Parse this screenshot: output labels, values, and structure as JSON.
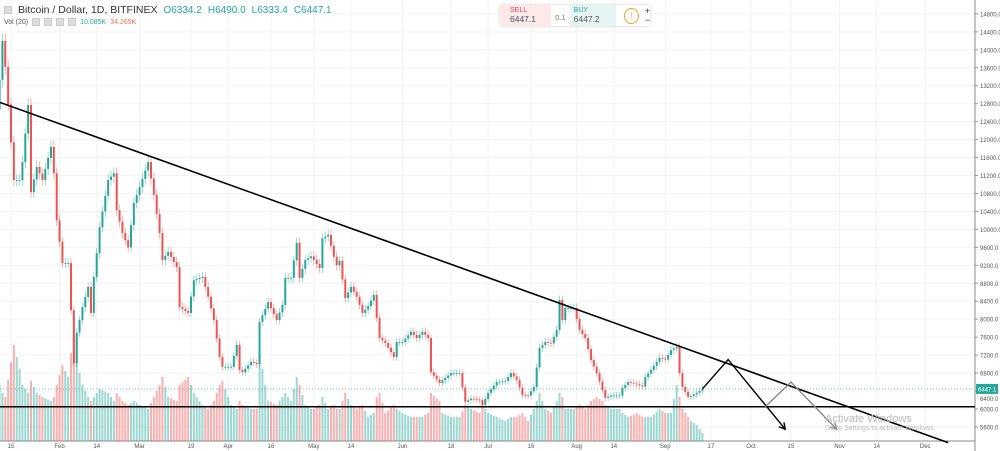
{
  "header": {
    "symbol_title": "Bitcoin / Dollar, 1D, BITFINEX",
    "open": "O6334.2",
    "high": "H6490.0",
    "low": "L6333.4",
    "close": "C6447.1",
    "volume_label": "Vol (20)",
    "volume_value": "10.085K",
    "volume_ma": "34.265K"
  },
  "trade_panel": {
    "sell_label": "SELL",
    "sell_price": "6447.1",
    "quantity": "0.1",
    "buy_label": "BUY",
    "buy_price": "6447.2",
    "plus": "+",
    "minus": "−",
    "info_icon": "info-icon"
  },
  "watermark": {
    "line1": "Activate Windows",
    "line2": "Go to Settings to activate Windows."
  },
  "colors": {
    "up": "#26a69a",
    "down": "#ef5350",
    "drawing": "#000000",
    "drawing_secondary": "#888888",
    "last_price": "#26a69a"
  },
  "chart_data": {
    "type": "candlestick",
    "interval": "1D",
    "last_price": 6447.1,
    "last_price_label": "6447.1",
    "price_ticks": [
      "5600.0",
      "6000.0",
      "6400.0",
      "6800.0",
      "7200.0",
      "7600.0",
      "8000.0",
      "8400.0",
      "8800.0",
      "9200.0",
      "9600.0",
      "10000.0",
      "10400.0",
      "10800.0",
      "11200.0",
      "11600.0",
      "12000.0",
      "12400.0",
      "12800.0",
      "13200.0",
      "13600.0",
      "14000.0",
      "14400.0",
      "14800.0"
    ],
    "time_ticks": [
      {
        "label": "15",
        "date": "2018-01-15"
      },
      {
        "label": "Feb",
        "date": "2018-02-01"
      },
      {
        "label": "14",
        "date": "2018-02-14"
      },
      {
        "label": "Mar",
        "date": "2018-03-01"
      },
      {
        "label": "19",
        "date": "2018-03-19"
      },
      {
        "label": "Apr",
        "date": "2018-04-01"
      },
      {
        "label": "16",
        "date": "2018-04-16"
      },
      {
        "label": "May",
        "date": "2018-05-01"
      },
      {
        "label": "14",
        "date": "2018-05-14"
      },
      {
        "label": "Jun",
        "date": "2018-06-01"
      },
      {
        "label": "18",
        "date": "2018-06-18"
      },
      {
        "label": "Jul",
        "date": "2018-07-01"
      },
      {
        "label": "16",
        "date": "2018-07-16"
      },
      {
        "label": "Aug",
        "date": "2018-08-01"
      },
      {
        "label": "14",
        "date": "2018-08-14"
      },
      {
        "label": "Sep",
        "date": "2018-09-01"
      },
      {
        "label": "17",
        "date": "2018-09-17"
      },
      {
        "label": "Oct",
        "date": "2018-10-01"
      },
      {
        "label": "15",
        "date": "2018-10-15"
      },
      {
        "label": "Nov",
        "date": "2018-11-01"
      },
      {
        "label": "14",
        "date": "2018-11-14"
      },
      {
        "label": "Dec",
        "date": "2018-12-01"
      }
    ],
    "closes": [
      [
        "2018-01-11",
        13330,
        70
      ],
      [
        "2018-01-12",
        14200,
        60
      ],
      [
        "2018-01-13",
        13620,
        55
      ],
      [
        "2018-01-16",
        11100,
        120
      ],
      [
        "2018-01-18",
        11100,
        90
      ],
      [
        "2018-01-19",
        11500,
        70
      ],
      [
        "2018-01-21",
        12770,
        60
      ],
      [
        "2018-01-22",
        10830,
        75
      ],
      [
        "2018-01-24",
        11390,
        60
      ],
      [
        "2018-01-26",
        11100,
        55
      ],
      [
        "2018-01-29",
        11840,
        50
      ],
      [
        "2018-01-30",
        11250,
        55
      ],
      [
        "2018-01-31",
        10200,
        70
      ],
      [
        "2018-02-02",
        9250,
        95
      ],
      [
        "2018-02-04",
        9250,
        80
      ],
      [
        "2018-02-05",
        8200,
        110
      ],
      [
        "2018-02-06",
        7020,
        130
      ],
      [
        "2018-02-07",
        7700,
        100
      ],
      [
        "2018-02-09",
        8270,
        70
      ],
      [
        "2018-02-11",
        8720,
        55
      ],
      [
        "2018-02-12",
        8140,
        50
      ],
      [
        "2018-02-13",
        8940,
        55
      ],
      [
        "2018-02-14",
        9470,
        60
      ],
      [
        "2018-02-15",
        10050,
        65
      ],
      [
        "2018-02-18",
        11100,
        60
      ],
      [
        "2018-02-20",
        11250,
        50
      ],
      [
        "2018-02-21",
        10430,
        60
      ],
      [
        "2018-02-23",
        9920,
        50
      ],
      [
        "2018-02-25",
        9600,
        45
      ],
      [
        "2018-02-27",
        10590,
        50
      ],
      [
        "2018-03-01",
        10940,
        45
      ],
      [
        "2018-03-04",
        11500,
        40
      ],
      [
        "2018-03-06",
        10770,
        55
      ],
      [
        "2018-03-08",
        9920,
        70
      ],
      [
        "2018-03-09",
        9320,
        80
      ],
      [
        "2018-03-11",
        9500,
        55
      ],
      [
        "2018-03-14",
        9160,
        50
      ],
      [
        "2018-03-15",
        8270,
        70
      ],
      [
        "2018-03-18",
        8140,
        80
      ],
      [
        "2018-03-20",
        8870,
        60
      ],
      [
        "2018-03-23",
        8940,
        45
      ],
      [
        "2018-03-25",
        8500,
        40
      ],
      [
        "2018-03-27",
        7980,
        50
      ],
      [
        "2018-03-29",
        7160,
        70
      ],
      [
        "2018-03-30",
        6940,
        75
      ],
      [
        "2018-04-02",
        6940,
        45
      ],
      [
        "2018-04-04",
        7430,
        40
      ],
      [
        "2018-04-05",
        6870,
        50
      ],
      [
        "2018-04-06",
        6820,
        45
      ],
      [
        "2018-04-09",
        7050,
        40
      ],
      [
        "2018-04-11",
        7000,
        40
      ],
      [
        "2018-04-12",
        7940,
        110
      ],
      [
        "2018-04-15",
        8380,
        50
      ],
      [
        "2018-04-18",
        7980,
        45
      ],
      [
        "2018-04-20",
        8320,
        55
      ],
      [
        "2018-04-21",
        8920,
        60
      ],
      [
        "2018-04-23",
        8920,
        50
      ],
      [
        "2018-04-25",
        9700,
        80
      ],
      [
        "2018-04-26",
        8920,
        70
      ],
      [
        "2018-04-28",
        9320,
        45
      ],
      [
        "2018-04-30",
        9400,
        40
      ],
      [
        "2018-05-01",
        9320,
        40
      ],
      [
        "2018-05-03",
        9140,
        45
      ],
      [
        "2018-05-04",
        9800,
        55
      ],
      [
        "2018-05-06",
        9880,
        40
      ],
      [
        "2018-05-08",
        9390,
        45
      ],
      [
        "2018-05-09",
        9200,
        40
      ],
      [
        "2018-05-10",
        9300,
        40
      ],
      [
        "2018-05-12",
        8470,
        60
      ],
      [
        "2018-05-14",
        8720,
        45
      ],
      [
        "2018-05-16",
        8500,
        40
      ],
      [
        "2018-05-18",
        8140,
        45
      ],
      [
        "2018-05-20",
        8290,
        30
      ],
      [
        "2018-05-22",
        8540,
        35
      ],
      [
        "2018-05-23",
        8030,
        55
      ],
      [
        "2018-05-24",
        7580,
        60
      ],
      [
        "2018-05-26",
        7470,
        35
      ],
      [
        "2018-05-29",
        7160,
        45
      ],
      [
        "2018-05-30",
        7490,
        40
      ],
      [
        "2018-06-01",
        7490,
        35
      ],
      [
        "2018-06-04",
        7720,
        30
      ],
      [
        "2018-06-06",
        7580,
        30
      ],
      [
        "2018-06-08",
        7720,
        30
      ],
      [
        "2018-06-10",
        7580,
        35
      ],
      [
        "2018-06-11",
        6820,
        60
      ],
      [
        "2018-06-14",
        6580,
        50
      ],
      [
        "2018-06-15",
        6640,
        35
      ],
      [
        "2018-06-18",
        6800,
        30
      ],
      [
        "2018-06-21",
        6800,
        30
      ],
      [
        "2018-06-23",
        6160,
        45
      ],
      [
        "2018-06-25",
        6230,
        40
      ],
      [
        "2018-06-28",
        6200,
        35
      ],
      [
        "2018-06-29",
        6090,
        45
      ],
      [
        "2018-07-01",
        6360,
        35
      ],
      [
        "2018-07-04",
        6600,
        30
      ],
      [
        "2018-07-07",
        6620,
        25
      ],
      [
        "2018-07-09",
        6800,
        30
      ],
      [
        "2018-07-11",
        6650,
        30
      ],
      [
        "2018-07-13",
        6310,
        35
      ],
      [
        "2018-07-15",
        6300,
        25
      ],
      [
        "2018-07-17",
        6490,
        40
      ],
      [
        "2018-07-19",
        7360,
        60
      ],
      [
        "2018-07-21",
        7490,
        40
      ],
      [
        "2018-07-23",
        7460,
        35
      ],
      [
        "2018-07-25",
        7760,
        50
      ],
      [
        "2018-07-26",
        8430,
        60
      ],
      [
        "2018-07-27",
        7980,
        55
      ],
      [
        "2018-07-28",
        8250,
        40
      ],
      [
        "2018-07-31",
        8250,
        40
      ],
      [
        "2018-08-02",
        7760,
        45
      ],
      [
        "2018-08-04",
        7580,
        40
      ],
      [
        "2018-08-06",
        7090,
        50
      ],
      [
        "2018-08-08",
        6800,
        55
      ],
      [
        "2018-08-10",
        6420,
        50
      ],
      [
        "2018-08-11",
        6250,
        45
      ],
      [
        "2018-08-13",
        6300,
        40
      ],
      [
        "2018-08-16",
        6300,
        40
      ],
      [
        "2018-08-17",
        6470,
        35
      ],
      [
        "2018-08-19",
        6600,
        30
      ],
      [
        "2018-08-22",
        6550,
        35
      ],
      [
        "2018-08-24",
        6500,
        30
      ],
      [
        "2018-08-25",
        6710,
        30
      ],
      [
        "2018-08-27",
        6870,
        30
      ],
      [
        "2018-08-30",
        7140,
        40
      ],
      [
        "2018-09-01",
        7100,
        35
      ],
      [
        "2018-09-03",
        7310,
        35
      ],
      [
        "2018-09-05",
        7380,
        70
      ],
      [
        "2018-09-06",
        6800,
        55
      ],
      [
        "2018-09-07",
        6490,
        40
      ],
      [
        "2018-09-09",
        6270,
        30
      ],
      [
        "2018-09-10",
        6290,
        25
      ],
      [
        "2018-09-12",
        6360,
        20
      ],
      [
        "2018-09-14",
        6447.1,
        10.085
      ]
    ],
    "closes_columns": [
      "date",
      "close",
      "volume_k"
    ],
    "drawings": [
      {
        "name": "descending-trendline",
        "points": [
          [
            "2018-01-08",
            12900
          ],
          [
            "2018-12-09",
            5250
          ]
        ]
      },
      {
        "name": "support-line",
        "price": 6050
      },
      {
        "name": "projection-path-primary",
        "points": [
          [
            "2018-09-14",
            6447
          ],
          [
            "2018-09-23",
            7100
          ],
          [
            "2018-10-13",
            5550
          ]
        ]
      },
      {
        "name": "projection-path-secondary",
        "points": [
          [
            "2018-10-06",
            6050
          ],
          [
            "2018-10-15",
            6600
          ],
          [
            "2018-10-31",
            5550
          ]
        ]
      }
    ]
  }
}
